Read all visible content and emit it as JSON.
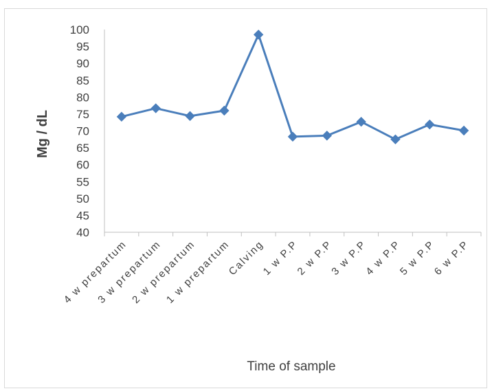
{
  "chart_data": {
    "type": "line",
    "title": "",
    "xlabel": "Time of sample",
    "ylabel": "Mg / dL",
    "categories": [
      "4 w prepartum",
      "3 w prepartum",
      "2 w prepartum",
      "1 w prepartum",
      "Calving",
      "1 w P.P",
      "2 w P.P",
      "3 w P.P",
      "4 w P.P",
      "5 w P.P",
      "6 w P.P"
    ],
    "series": [
      {
        "values": [
          74.2,
          76.7,
          74.4,
          76.0,
          98.5,
          68.3,
          68.6,
          72.7,
          67.5,
          71.9,
          70.1
        ],
        "color": "#4a7ebb",
        "marker": "diamond"
      }
    ],
    "ylim": [
      40,
      100
    ],
    "yticks": [
      "100",
      "95",
      "90",
      "85",
      "80",
      "75",
      "70",
      "65",
      "60",
      "55",
      "50",
      "45",
      "40"
    ],
    "grid": false,
    "legend": "none"
  }
}
